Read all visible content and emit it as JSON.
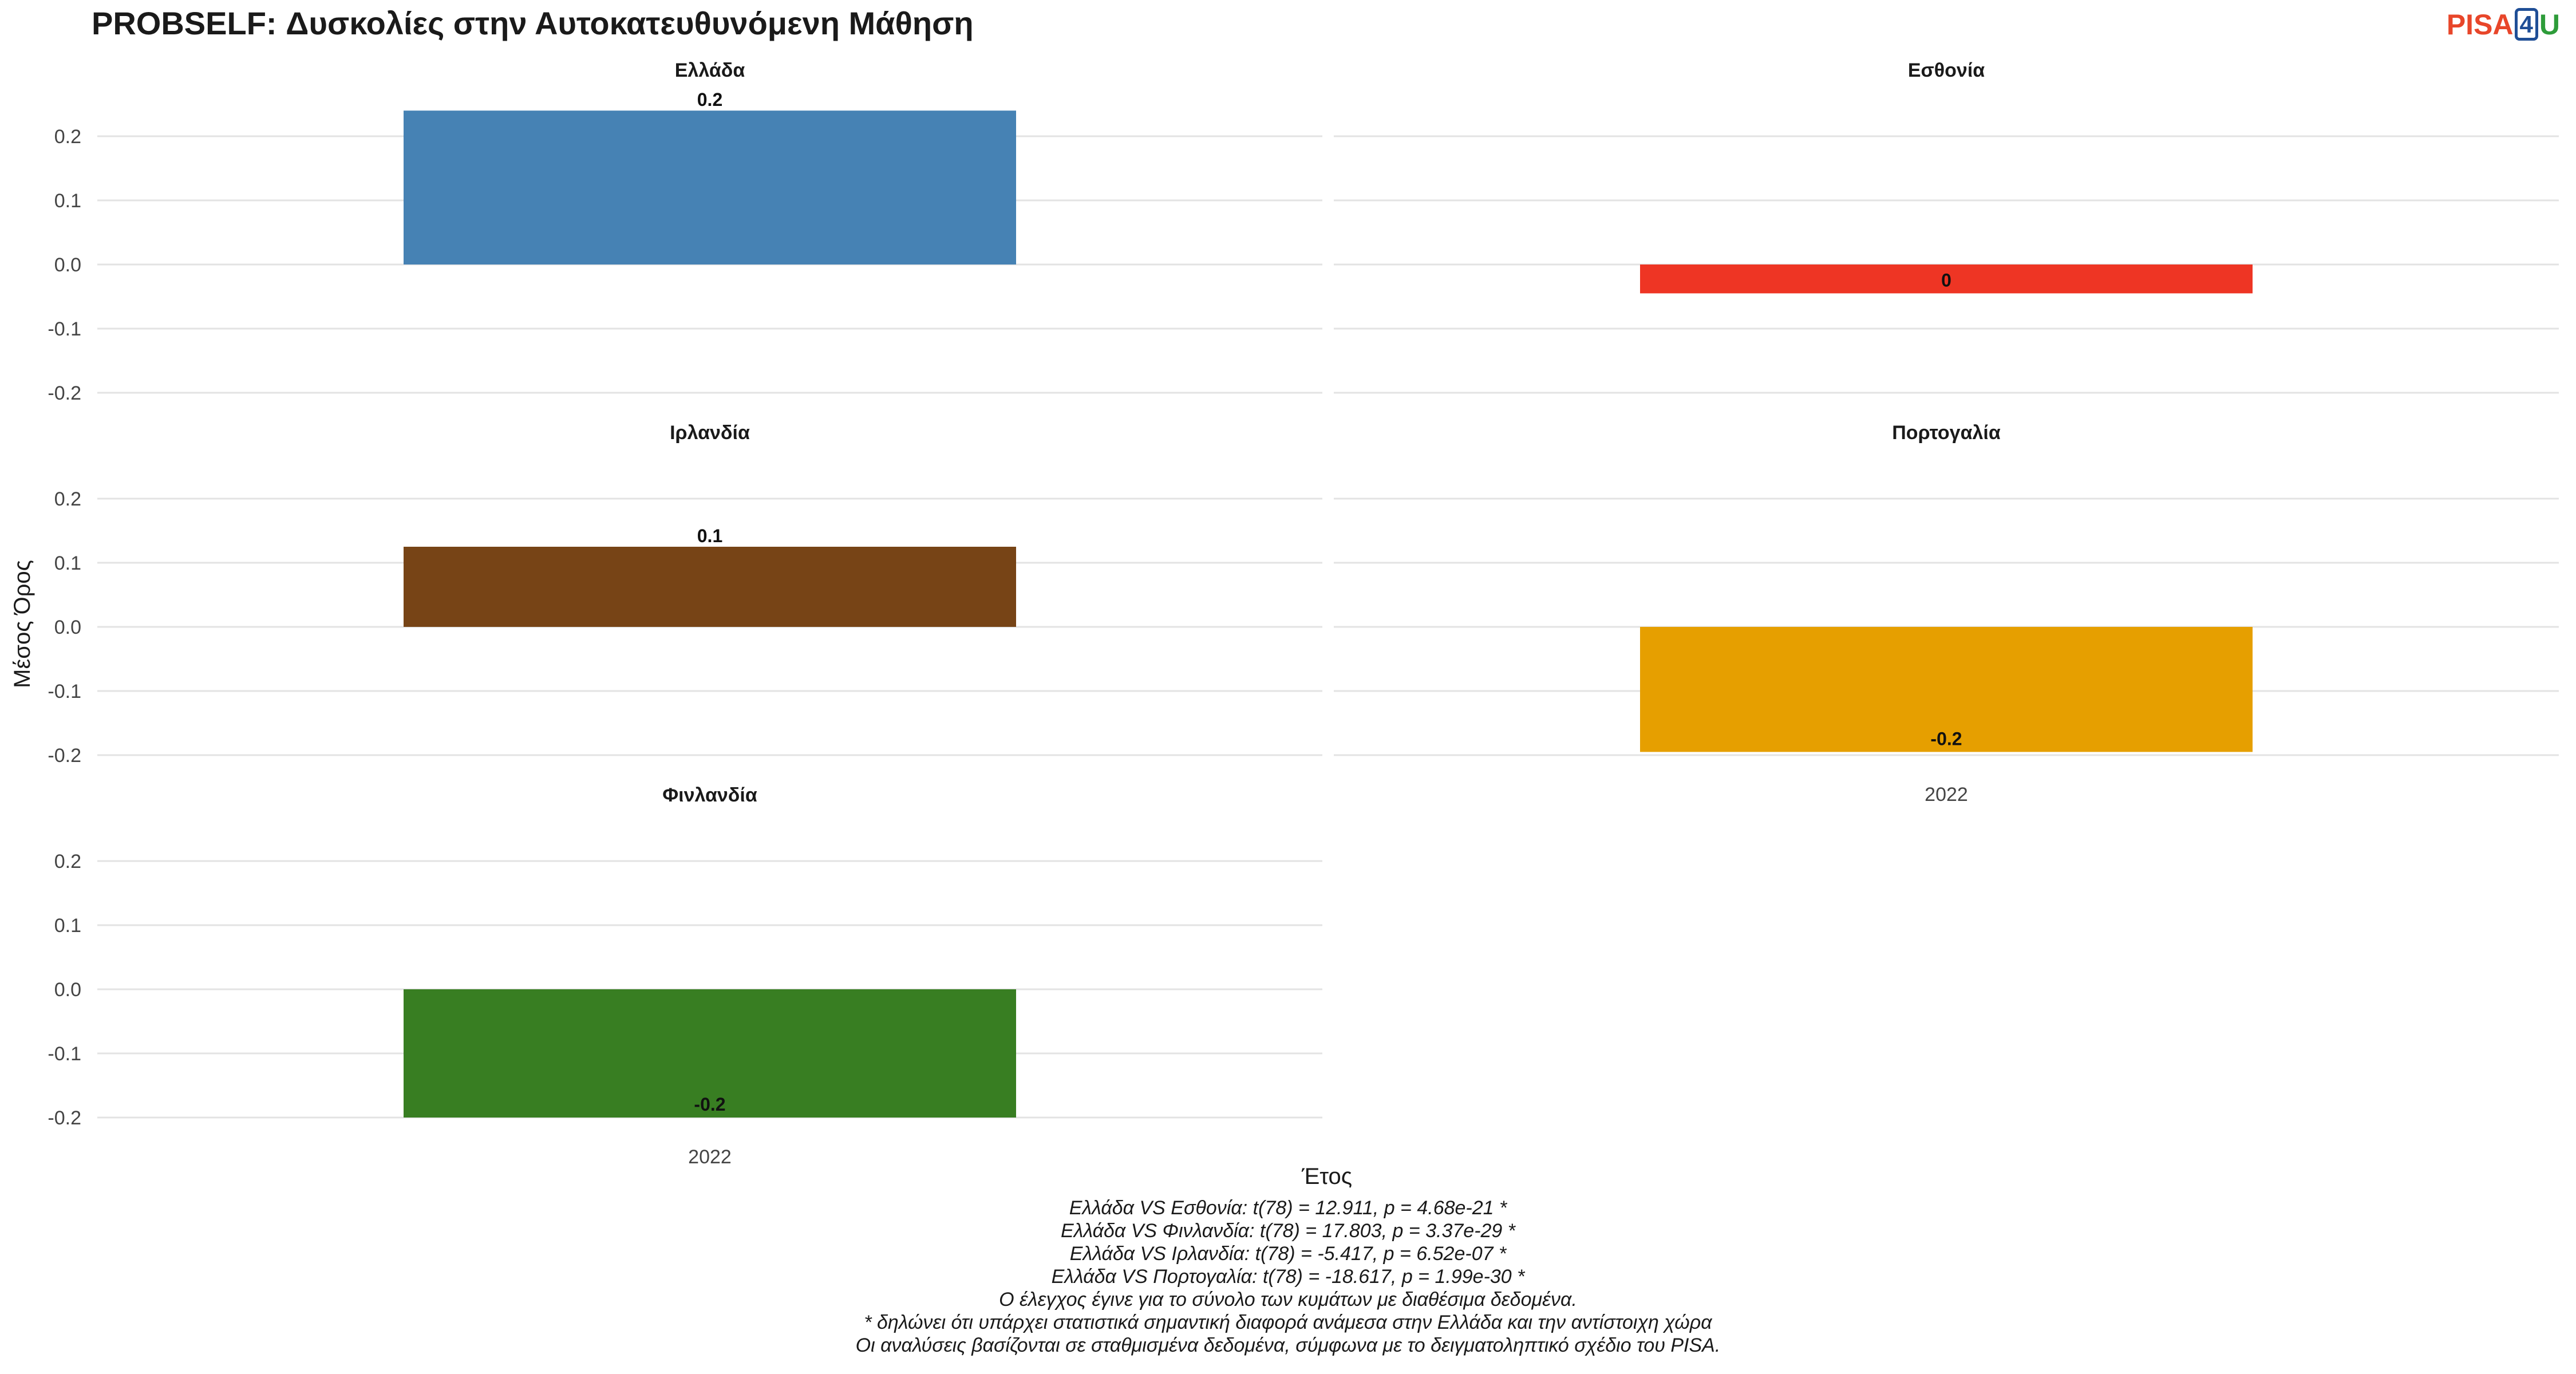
{
  "title": "PROBSELF: Δυσκολίες στην Αυτοκατευθυνόμενη Μάθηση",
  "logo": {
    "part1": "PISA",
    "part2": "4",
    "part3": "U"
  },
  "chart_data": {
    "type": "bar",
    "xlabel": "Έτος",
    "ylabel": "Μέσος Όρος",
    "ylim": [
      -0.2,
      0.25
    ],
    "yticks": [
      -0.2,
      -0.1,
      0.0,
      0.1,
      0.2
    ],
    "ytick_labels": [
      "-0.2",
      "-0.1",
      "0.0",
      "0.1",
      "0.2"
    ],
    "categories": [
      "2022"
    ],
    "grid": true,
    "legend": "none",
    "panels": [
      {
        "name": "Ελλάδα",
        "color": "#4682b4",
        "values": [
          0.24
        ],
        "label": "0.2"
      },
      {
        "name": "Εσθονία",
        "color": "#ee3524",
        "values": [
          -0.045
        ],
        "label": "0"
      },
      {
        "name": "Ιρλανδία",
        "color": "#774416",
        "values": [
          0.125
        ],
        "label": "0.1"
      },
      {
        "name": "Πορτογαλία",
        "color": "#e69f00",
        "values": [
          -0.195
        ],
        "label": "-0.2"
      },
      {
        "name": "Φινλανδία",
        "color": "#387e22",
        "values": [
          -0.2
        ],
        "label": "-0.2"
      }
    ]
  },
  "notes": [
    "Ελλάδα VS Εσθονία: t(78) = 12.911, p = 4.68e-21 *",
    "Ελλάδα VS Φινλανδία: t(78) = 17.803, p = 3.37e-29 *",
    "Ελλάδα VS Ιρλανδία: t(78) = -5.417, p = 6.52e-07 *",
    "Ελλάδα VS Πορτογαλία: t(78) = -18.617, p = 1.99e-30 *",
    "Ο έλεγχος έγινε για το σύνολο των κυμάτων με διαθέσιμα δεδομένα.",
    "* δηλώνει ότι υπάρχει στατιστικά σημαντική διαφορά ανάμεσα στην Ελλάδα και την αντίστοιχη χώρα",
    "Οι αναλύσεις βασίζονται σε σταθμισμένα δεδομένα, σύμφωνα με το δειγματοληπτικό σχέδιο του PISA."
  ]
}
